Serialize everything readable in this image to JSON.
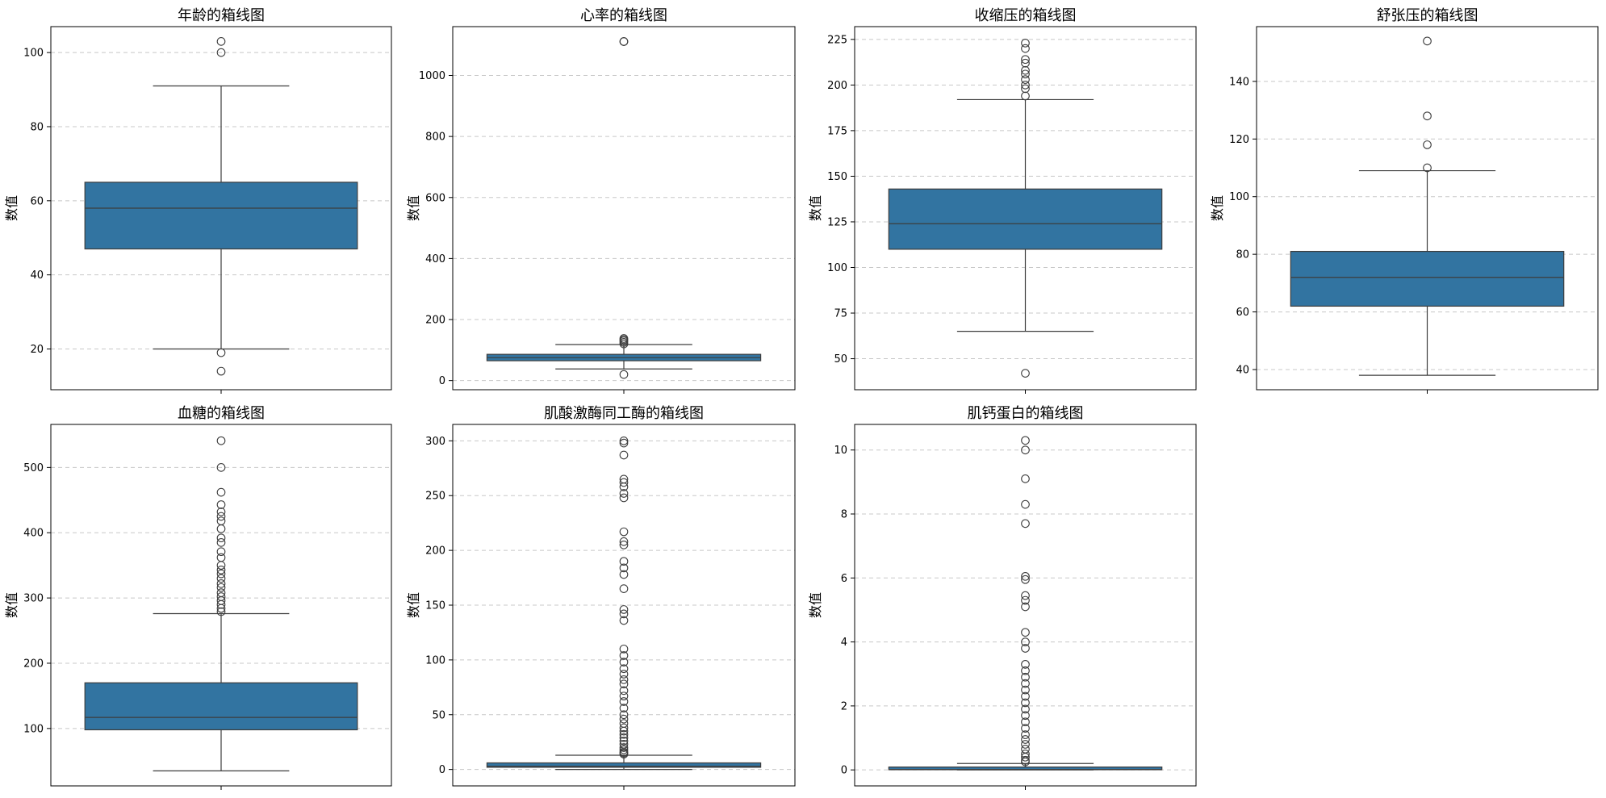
{
  "figure": {
    "background": "#ffffff",
    "box_color": "#3274a1",
    "line_color": "#3d3d3d",
    "grid_color": "#c8c8c8"
  },
  "chart_data": [
    {
      "type": "box",
      "title": "年龄的箱线图",
      "ylabel": "数值",
      "ylim": [
        9,
        107
      ],
      "yticks": [
        20,
        40,
        60,
        80,
        100
      ],
      "grid": true,
      "box": {
        "whisker_low": 20,
        "q1": 47,
        "median": 58,
        "q3": 65,
        "whisker_high": 91
      },
      "outliers": [
        103,
        100,
        19,
        14
      ]
    },
    {
      "type": "box",
      "title": "心率的箱线图",
      "ylabel": "数值",
      "ylim": [
        -30,
        1160
      ],
      "yticks": [
        0,
        200,
        400,
        600,
        800,
        1000
      ],
      "grid": true,
      "box": {
        "whisker_low": 38,
        "q1": 65,
        "median": 75,
        "q3": 86,
        "whisker_high": 118
      },
      "outliers": [
        1111,
        1111,
        138,
        134,
        130,
        125,
        120,
        20
      ]
    },
    {
      "type": "box",
      "title": "收缩压的箱线图",
      "ylabel": "数值",
      "ylim": [
        33,
        232
      ],
      "yticks": [
        50,
        75,
        100,
        125,
        150,
        175,
        200,
        225
      ],
      "grid": true,
      "box": {
        "whisker_low": 65,
        "q1": 110,
        "median": 124,
        "q3": 143,
        "whisker_high": 192
      },
      "outliers": [
        223,
        220,
        214,
        212,
        208,
        206,
        203,
        200,
        198,
        194,
        42
      ]
    },
    {
      "type": "box",
      "title": "舒张压的箱线图",
      "ylabel": "数值",
      "ylim": [
        33,
        159
      ],
      "yticks": [
        40,
        60,
        80,
        100,
        120,
        140
      ],
      "grid": true,
      "box": {
        "whisker_low": 38,
        "q1": 62,
        "median": 72,
        "q3": 81,
        "whisker_high": 109
      },
      "outliers": [
        154,
        128,
        118,
        110
      ]
    },
    {
      "type": "box",
      "title": "血糖的箱线图",
      "ylabel": "数值",
      "ylim": [
        12,
        566
      ],
      "yticks": [
        100,
        200,
        300,
        400,
        500
      ],
      "grid": true,
      "box": {
        "whisker_low": 35,
        "q1": 98,
        "median": 117,
        "q3": 170,
        "whisker_high": 276
      },
      "outliers": [
        541,
        500,
        462,
        443,
        432,
        425,
        418,
        406,
        392,
        385,
        371,
        362,
        350,
        343,
        337,
        330,
        322,
        316,
        308,
        302,
        296,
        290,
        284,
        279
      ]
    },
    {
      "type": "box",
      "title": "肌酸激酶同工酶的箱线图",
      "ylabel": "数值",
      "ylim": [
        -15,
        315
      ],
      "yticks": [
        0,
        50,
        100,
        150,
        200,
        250,
        300
      ],
      "grid": true,
      "box": {
        "whisker_low": 0,
        "q1": 2,
        "median": 3,
        "q3": 6,
        "whisker_high": 13
      },
      "outliers": [
        300,
        298,
        287,
        265,
        262,
        258,
        252,
        248,
        217,
        208,
        205,
        190,
        184,
        178,
        165,
        146,
        142,
        136,
        110,
        104,
        98,
        92,
        87,
        82,
        78,
        72,
        67,
        62,
        56,
        50,
        46,
        42,
        38,
        35,
        32,
        29,
        26,
        23,
        20,
        18,
        16,
        15,
        14
      ]
    },
    {
      "type": "box",
      "title": "肌钙蛋白的箱线图",
      "ylabel": "数值",
      "ylim": [
        -0.5,
        10.8
      ],
      "yticks": [
        0,
        2,
        4,
        6,
        8,
        10
      ],
      "grid": true,
      "box": {
        "whisker_low": 0.001,
        "q1": 0.006,
        "median": 0.014,
        "q3": 0.09,
        "whisker_high": 0.2
      },
      "outliers": [
        10.3,
        10.0,
        9.1,
        8.3,
        7.7,
        6.05,
        5.95,
        5.45,
        5.3,
        5.1,
        4.3,
        4.0,
        3.8,
        3.3,
        3.1,
        2.9,
        2.7,
        2.5,
        2.3,
        2.1,
        1.9,
        1.7,
        1.5,
        1.3,
        1.1,
        0.95,
        0.8,
        0.65,
        0.5,
        0.4,
        0.3,
        0.25
      ]
    }
  ]
}
